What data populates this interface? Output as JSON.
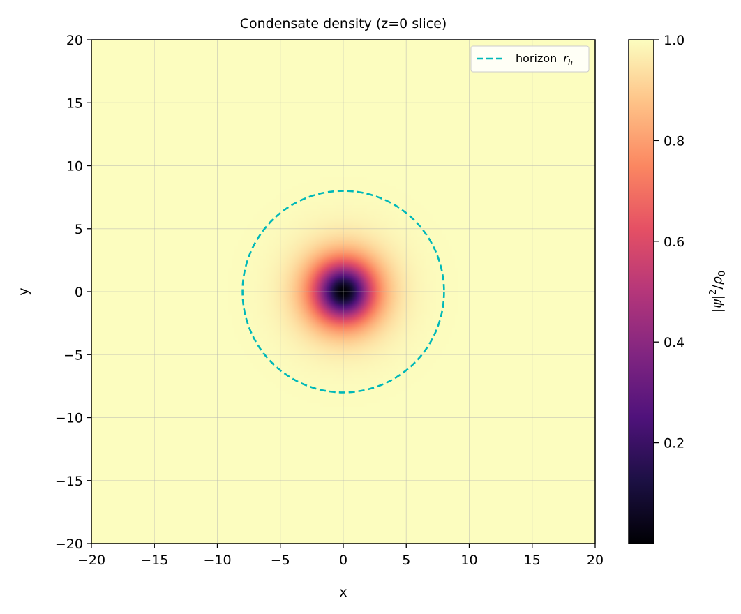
{
  "chart_data": {
    "type": "heatmap",
    "title": "Condensate density (z=0 slice)",
    "xlabel": "x",
    "ylabel": "y",
    "xlim": [
      -20,
      20
    ],
    "ylim": [
      -20,
      20
    ],
    "xticks": [
      -20,
      -15,
      -10,
      -5,
      0,
      5,
      10,
      15,
      20
    ],
    "yticks": [
      -20,
      -15,
      -10,
      -5,
      0,
      5,
      10,
      15,
      20
    ],
    "xtick_labels": [
      "−20",
      "−15",
      "−10",
      "−5",
      "0",
      "5",
      "10",
      "15",
      "20"
    ],
    "ytick_labels": [
      "−20",
      "−15",
      "−10",
      "−5",
      "0",
      "5",
      "10",
      "15",
      "20"
    ],
    "grid": true,
    "colormap": "magma",
    "field": {
      "description_formula": "|psi|^2/rho0 = tanh^2(r/xi)",
      "vortex_center": [
        0,
        0
      ],
      "healing_length": 2.2,
      "vmin": 0.0,
      "vmax": 1.0
    },
    "colorbar": {
      "label": "|ψ|²/ρ₀",
      "ticks": [
        0.2,
        0.4,
        0.6,
        0.8,
        1.0
      ],
      "tick_labels": [
        "0.2",
        "0.4",
        "0.6",
        "0.8",
        "1.0"
      ],
      "range": [
        0.0,
        1.0
      ]
    },
    "overlays": [
      {
        "type": "circle",
        "name": "horizon r_h",
        "center": [
          0,
          0
        ],
        "radius": 8,
        "style": "dashed",
        "color": "#00b8b8"
      }
    ],
    "legend": {
      "placement": "top-right",
      "entries": [
        {
          "label": "horizon",
          "subscript_label": "r",
          "subscript": "h"
        }
      ]
    }
  }
}
